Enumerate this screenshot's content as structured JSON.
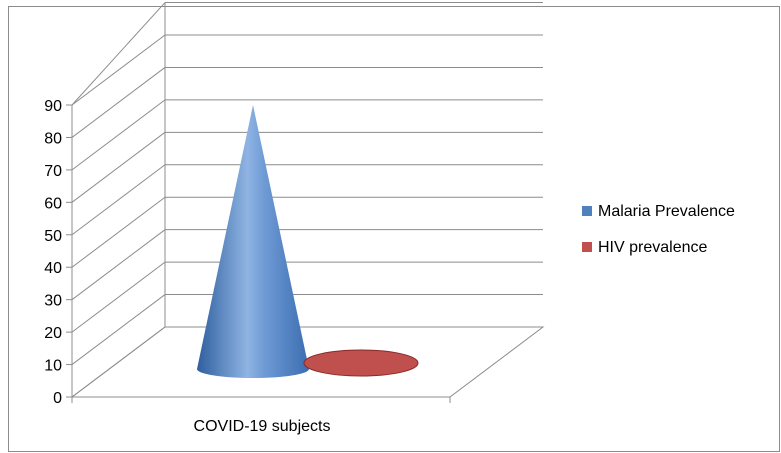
{
  "chart_data": {
    "type": "bar",
    "style": "3d-cone",
    "categories": [
      "COVID-19 subjects"
    ],
    "series": [
      {
        "name": "Malaria Prevalence",
        "values": [
          90
        ],
        "color": "#4f81bd"
      },
      {
        "name": "HIV prevalence",
        "values": [
          1
        ],
        "color": "#c0504d"
      }
    ],
    "yticks": [
      "0",
      "10",
      "20",
      "30",
      "40",
      "50",
      "60",
      "70",
      "80",
      "90"
    ],
    "ylim": [
      0,
      90
    ],
    "grid": true,
    "legend_position": "right"
  }
}
